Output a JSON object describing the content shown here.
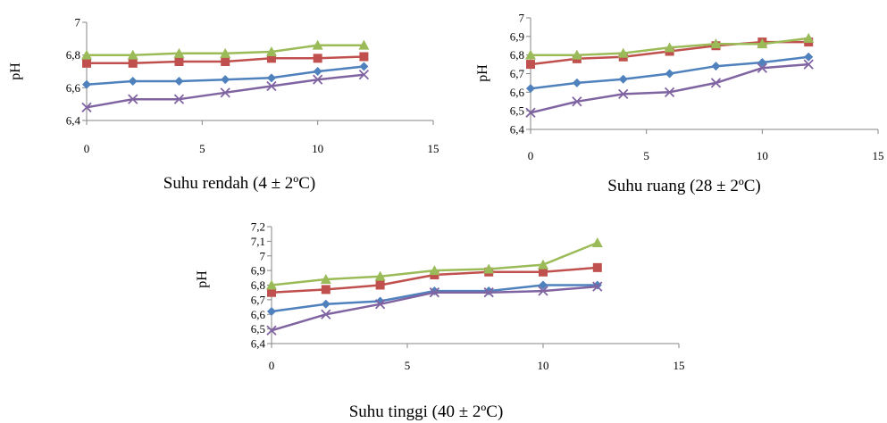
{
  "chart_data": [
    {
      "type": "line",
      "title": "Suhu rendah (4 ± 2ºC)",
      "xlabel": "",
      "ylabel": "pH",
      "xlim": [
        0,
        15
      ],
      "ylim": [
        6.4,
        7
      ],
      "xticks": [
        "0",
        "5",
        "10",
        "15"
      ],
      "yticks": [
        "6,4",
        "6,6",
        "6,8",
        "7"
      ],
      "x": [
        0,
        2,
        4,
        6,
        8,
        10,
        12
      ],
      "series": [
        {
          "color": "#4f81bd",
          "marker": "diamond",
          "values": [
            6.62,
            6.64,
            6.64,
            6.65,
            6.66,
            6.7,
            6.73
          ]
        },
        {
          "color": "#c0504d",
          "marker": "square",
          "values": [
            6.75,
            6.75,
            6.76,
            6.76,
            6.78,
            6.78,
            6.79
          ]
        },
        {
          "color": "#9bbb59",
          "marker": "triangle",
          "values": [
            6.8,
            6.8,
            6.81,
            6.81,
            6.82,
            6.86,
            6.86
          ]
        },
        {
          "color": "#8064a2",
          "marker": "x",
          "values": [
            6.48,
            6.53,
            6.53,
            6.57,
            6.61,
            6.65,
            6.68
          ]
        }
      ]
    },
    {
      "type": "line",
      "title": "Suhu ruang (28 ± 2ºC)",
      "xlabel": "",
      "ylabel": "pH",
      "xlim": [
        0,
        15
      ],
      "ylim": [
        6.4,
        7
      ],
      "xticks": [
        "0",
        "5",
        "10",
        "15"
      ],
      "yticks": [
        "6,4",
        "6,5",
        "6,6",
        "6,7",
        "6,8",
        "6,9",
        "7"
      ],
      "x": [
        0,
        2,
        4,
        6,
        8,
        10,
        12
      ],
      "series": [
        {
          "color": "#4f81bd",
          "marker": "diamond",
          "values": [
            6.62,
            6.65,
            6.67,
            6.7,
            6.74,
            6.76,
            6.79
          ]
        },
        {
          "color": "#c0504d",
          "marker": "square",
          "values": [
            6.75,
            6.78,
            6.79,
            6.82,
            6.85,
            6.87,
            6.87
          ]
        },
        {
          "color": "#9bbb59",
          "marker": "triangle",
          "values": [
            6.8,
            6.8,
            6.81,
            6.84,
            6.86,
            6.86,
            6.89
          ]
        },
        {
          "color": "#8064a2",
          "marker": "x",
          "values": [
            6.49,
            6.55,
            6.59,
            6.6,
            6.65,
            6.73,
            6.75
          ]
        }
      ]
    },
    {
      "type": "line",
      "title": "Suhu tinggi (40 ± 2ºC)",
      "xlabel": "",
      "ylabel": "pH",
      "xlim": [
        0,
        15
      ],
      "ylim": [
        6.4,
        7.2
      ],
      "xticks": [
        "0",
        "5",
        "10",
        "15"
      ],
      "yticks": [
        "6,4",
        "6,5",
        "6,6",
        "6,7",
        "6,8",
        "6,9",
        "7",
        "7,1",
        "7,2"
      ],
      "x": [
        0,
        2,
        4,
        6,
        8,
        10,
        12
      ],
      "series": [
        {
          "color": "#4f81bd",
          "marker": "diamond",
          "values": [
            6.62,
            6.67,
            6.69,
            6.76,
            6.76,
            6.8,
            6.8
          ]
        },
        {
          "color": "#c0504d",
          "marker": "square",
          "values": [
            6.75,
            6.77,
            6.8,
            6.87,
            6.89,
            6.89,
            6.92
          ]
        },
        {
          "color": "#9bbb59",
          "marker": "triangle",
          "values": [
            6.8,
            6.84,
            6.86,
            6.9,
            6.91,
            6.94,
            7.09
          ]
        },
        {
          "color": "#8064a2",
          "marker": "x",
          "values": [
            6.49,
            6.6,
            6.67,
            6.75,
            6.75,
            6.76,
            6.79
          ]
        }
      ]
    }
  ]
}
